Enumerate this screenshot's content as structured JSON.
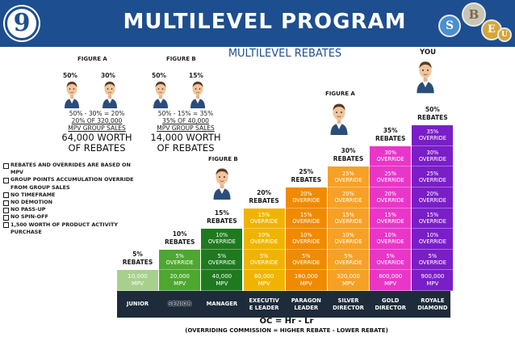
{
  "header": {
    "number": "9",
    "title": "MULTILEVEL PROGRAM",
    "logos": [
      "S",
      "B",
      "E",
      "U"
    ],
    "colors": {
      "bar": "#1d4e8f",
      "coin_s": "#4a8fd0",
      "coin_b": "#c9c4b8",
      "coin_e": "#d4a63a"
    }
  },
  "subtitle": "MULTILEVEL REBATES",
  "figure_a": {
    "label": "FIGURE A",
    "pct_left": "50%",
    "pct_right": "30%",
    "calc": "50% - 30% = 20%",
    "line2": "20% OF 320,000",
    "line3": "MPV GROUP SALES",
    "worth_amount": "64,000 WORTH",
    "worth_text": "OF REBATES"
  },
  "figure_b": {
    "label": "FIGURE B",
    "pct_left": "50%",
    "pct_right": "15%",
    "calc": "50% - 15% = 35%",
    "line2": "35% OF 40,000",
    "line3": "MPV GROUP SALES",
    "worth_amount": "14,000 WORTH",
    "worth_text": "OF REBATES"
  },
  "checklist": [
    "REBATES AND OVERRIDES ARE BASED ON MPV",
    "GROUP POINTS ACCUMULATION OVERRIDE FROM GROUP SALES",
    "NO TIMEFRAME",
    "NO DEMOTION",
    "NO PASS-UP",
    "NO SPIN-OFF",
    "1,500 WORTH OF PRODUCT ACTIVITY PURCHASE"
  ],
  "chart_labels": {
    "figure_b": "FIGURE B",
    "figure_a": "FIGURE A",
    "you": "YOU"
  },
  "ranks": [
    {
      "name": "JUNIOR",
      "rebate": "5%\nREBATES",
      "mpv": "10,000\nMPV",
      "overrides": [],
      "color": "#a8d08d"
    },
    {
      "name": "SENIOR",
      "rebate": "10%\nREBATES",
      "mpv": "20,000\nMPV",
      "overrides": [
        "5%\nOVERRIDE"
      ],
      "color": "#4ea72e"
    },
    {
      "name": "MANAGER",
      "rebate": "15%\nREBATES",
      "mpv": "40,000\nMPV",
      "overrides": [
        "10%\nOVERRIDE",
        "5%\nOVERRIDE"
      ],
      "color": "#1f7a1f"
    },
    {
      "name": "EXECUTIV\nE LEADER",
      "rebate": "20%\nREBATES",
      "mpv": "60,000\nMPV",
      "overrides": [
        "15%\nOVERRIDE",
        "10%\nOVERRIDE",
        "5%\nOVERRIDE"
      ],
      "color": "#f0b400"
    },
    {
      "name": "PARAGON\nLEADER",
      "rebate": "25%\nREBATES",
      "mpv": "160,000\nMPV",
      "overrides": [
        "20%\nOVERRIDE",
        "15%\nOVERRIDE",
        "10%\nOVERRIDE",
        "5%\nOVERRIDE"
      ],
      "color": "#f08a00"
    },
    {
      "name": "SILVER\nDIRECTOR",
      "rebate": "30%\nREBATES",
      "mpv": "320,000\nMPV",
      "overrides": [
        "25%\nOVERRIDE",
        "20%\nOVERRIDE",
        "15%\nOVERRIDE",
        "10%\nOVERRIDE",
        "5%\nOVERRIDE"
      ],
      "color": "#f6a126"
    },
    {
      "name": "GOLD\nDIRECTOR",
      "rebate": "35%\nREBATES",
      "mpv": "600,000\nMPV",
      "overrides": [
        "30%\nOVERRIDE",
        "25%\nOVERRIDE",
        "20%\nOVERRIDE",
        "15%\nOVERRIDE",
        "10%\nOVERRIDE",
        "5%\nOVERRIDE"
      ],
      "color": "#e936c9"
    },
    {
      "name": "ROYALE\nDIAMOND",
      "rebate": "50%\nREBATES",
      "mpv": "900,000\nMPV",
      "overrides": [
        "35%\nOVERRIDE",
        "30%\nOVERRIDE",
        "25%\nOVERRIDE",
        "20%\nOVERRIDE",
        "15%\nOVERRIDE",
        "10%\nOVERRIDE",
        "5%\nOVERRIDE"
      ],
      "color": "#7a1ec8"
    }
  ],
  "rank_bar_color": "#1d2b3a",
  "formula": "OC = Hr - Lr",
  "formula_note": "(OVERRIDING COMMISSION = HIGHER REBATE - LOWER REBATE)"
}
